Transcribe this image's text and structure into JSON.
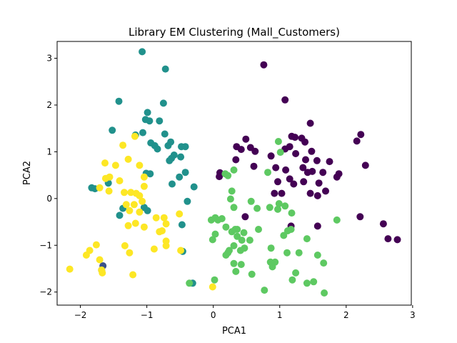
{
  "chart_data": {
    "type": "scatter",
    "title": "Library EM Clustering (Mall_Customers)",
    "xlabel": "PCA1",
    "ylabel": "PCA2",
    "xlim": [
      -2.35,
      2.98
    ],
    "ylim": [
      -2.28,
      3.36
    ],
    "xticks": [
      -2,
      -1,
      0,
      1,
      2,
      3
    ],
    "yticks": [
      -2,
      -1,
      0,
      1,
      2,
      3
    ],
    "grid": false,
    "colors": [
      "#440154",
      "#3b528b",
      "#21918c",
      "#5ec962",
      "#fde725"
    ],
    "series": [
      {
        "color": "#440154",
        "points": [
          [
            0.76,
            2.86
          ],
          [
            1.08,
            2.11
          ],
          [
            1.46,
            1.61
          ],
          [
            1.18,
            1.33
          ],
          [
            1.23,
            1.31
          ],
          [
            1.33,
            1.29
          ],
          [
            0.49,
            1.27
          ],
          [
            2.22,
            1.37
          ],
          [
            2.29,
            0.71
          ],
          [
            2.16,
            1.23
          ],
          [
            0.56,
            1.09
          ],
          [
            0.35,
            1.11
          ],
          [
            0.42,
            1.05
          ],
          [
            0.63,
            1.01
          ],
          [
            1.08,
            1.06
          ],
          [
            1.15,
            1.11
          ],
          [
            1.38,
            1.21
          ],
          [
            1.48,
            1.01
          ],
          [
            0.34,
            0.83
          ],
          [
            0.87,
            0.91
          ],
          [
            1.24,
            0.96
          ],
          [
            1.39,
            0.83
          ],
          [
            1.56,
            0.81
          ],
          [
            1.65,
            0.56
          ],
          [
            1.75,
            0.79
          ],
          [
            0.61,
            0.69
          ],
          [
            0.94,
            0.66
          ],
          [
            1.09,
            0.61
          ],
          [
            1.35,
            0.66
          ],
          [
            1.42,
            0.56
          ],
          [
            1.49,
            0.58
          ],
          [
            1.89,
            0.53
          ],
          [
            1.86,
            0.46
          ],
          [
            0.97,
            0.36
          ],
          [
            1.15,
            0.42
          ],
          [
            1.21,
            0.31
          ],
          [
            1.36,
            0.36
          ],
          [
            1.59,
            0.33
          ],
          [
            1.69,
            0.16
          ],
          [
            0.92,
            0.11
          ],
          [
            1.03,
            0.11
          ],
          [
            1.46,
            0.11
          ],
          [
            1.57,
            0.06
          ],
          [
            0.1,
            0.55
          ],
          [
            0.09,
            0.47
          ],
          [
            0.48,
            -0.39
          ],
          [
            1.17,
            -0.59
          ],
          [
            1.57,
            -0.59
          ],
          [
            2.21,
            -0.39
          ],
          [
            2.56,
            -0.54
          ],
          [
            2.63,
            -0.86
          ],
          [
            2.77,
            -0.88
          ]
        ]
      },
      {
        "color": "#3b528b",
        "points": [
          [
            -1.66,
            -1.44
          ],
          [
            -1.68,
            -1.53
          ]
        ]
      },
      {
        "color": "#21918c",
        "points": [
          [
            -1.07,
            3.14
          ],
          [
            -0.72,
            2.77
          ],
          [
            -1.42,
            2.08
          ],
          [
            -0.75,
            2.04
          ],
          [
            -0.99,
            1.84
          ],
          [
            -1.02,
            1.69
          ],
          [
            -0.96,
            1.66
          ],
          [
            -0.81,
            1.66
          ],
          [
            -1.52,
            1.46
          ],
          [
            -1.17,
            1.36
          ],
          [
            -1.06,
            1.41
          ],
          [
            -0.73,
            1.38
          ],
          [
            -0.64,
            1.21
          ],
          [
            -0.68,
            1.13
          ],
          [
            -0.94,
            1.19
          ],
          [
            -0.88,
            1.13
          ],
          [
            -0.84,
            1.06
          ],
          [
            -0.48,
            1.11
          ],
          [
            -0.42,
            1.11
          ],
          [
            -0.59,
            0.93
          ],
          [
            -0.63,
            0.86
          ],
          [
            -0.66,
            0.81
          ],
          [
            -0.49,
            0.89
          ],
          [
            -0.42,
            0.56
          ],
          [
            -0.51,
            0.46
          ],
          [
            -0.62,
            0.31
          ],
          [
            -1.01,
            0.54
          ],
          [
            -0.95,
            0.53
          ],
          [
            -1.83,
            0.23
          ],
          [
            -1.78,
            0.21
          ],
          [
            -1.58,
            0.33
          ],
          [
            -1.36,
            -0.21
          ],
          [
            -1.41,
            -0.36
          ],
          [
            -1.04,
            -0.19
          ],
          [
            -0.99,
            -0.26
          ],
          [
            -0.29,
            0.25
          ],
          [
            -0.39,
            -0.06
          ],
          [
            -0.47,
            -0.56
          ],
          [
            -0.46,
            -1.13
          ],
          [
            -0.31,
            -1.81
          ]
        ]
      },
      {
        "color": "#5ec962",
        "points": [
          [
            0.98,
            1.22
          ],
          [
            1.01,
            0.99
          ],
          [
            0.82,
            0.56
          ],
          [
            0.18,
            0.53
          ],
          [
            0.31,
            0.61
          ],
          [
            0.22,
            0.49
          ],
          [
            0.28,
            0.16
          ],
          [
            0.26,
            -0.01
          ],
          [
            0.31,
            -0.19
          ],
          [
            0.57,
            -0.06
          ],
          [
            0.66,
            -0.21
          ],
          [
            0.85,
            -0.19
          ],
          [
            0.97,
            -0.23
          ],
          [
            0.99,
            -0.11
          ],
          [
            1.08,
            -0.16
          ],
          [
            1.18,
            -0.31
          ],
          [
            1.06,
            -0.79
          ],
          [
            1.12,
            -0.69
          ],
          [
            1.17,
            -0.66
          ],
          [
            0.03,
            -0.41
          ],
          [
            0.07,
            -0.46
          ],
          [
            0.13,
            -0.43
          ],
          [
            -0.03,
            -0.46
          ],
          [
            0.19,
            -0.61
          ],
          [
            0.28,
            -0.71
          ],
          [
            0.33,
            -0.66
          ],
          [
            0.36,
            -0.66
          ],
          [
            0.46,
            -0.73
          ],
          [
            0.68,
            -0.66
          ],
          [
            0.36,
            -0.81
          ],
          [
            0.43,
            -0.89
          ],
          [
            0.55,
            -0.89
          ],
          [
            0.03,
            -0.76
          ],
          [
            -0.01,
            -0.88
          ],
          [
            0.31,
            -1.01
          ],
          [
            0.47,
            -1.06
          ],
          [
            0.22,
            -1.16
          ],
          [
            0.24,
            -1.11
          ],
          [
            0.19,
            -1.21
          ],
          [
            0.41,
            -1.11
          ],
          [
            0.87,
            -1.06
          ],
          [
            1.11,
            -1.16
          ],
          [
            1.29,
            -1.16
          ],
          [
            0.86,
            -1.36
          ],
          [
            0.31,
            -1.39
          ],
          [
            0.42,
            -1.41
          ],
          [
            0.93,
            -1.36
          ],
          [
            1.86,
            -0.46
          ],
          [
            1.41,
            -0.86
          ],
          [
            1.57,
            -1.21
          ],
          [
            1.66,
            -1.38
          ],
          [
            1.24,
            -1.59
          ],
          [
            0.34,
            -1.56
          ],
          [
            0.58,
            -1.62
          ],
          [
            0.89,
            -1.46
          ],
          [
            1.19,
            -1.74
          ],
          [
            1.51,
            -1.78
          ],
          [
            1.41,
            -1.81
          ],
          [
            1.67,
            -2.02
          ],
          [
            0.77,
            -1.96
          ],
          [
            0.02,
            -1.74
          ],
          [
            -0.36,
            -1.81
          ]
        ]
      },
      {
        "color": "#fde725",
        "points": [
          [
            -1.18,
            1.33
          ],
          [
            -1.63,
            0.76
          ],
          [
            -1.47,
            0.71
          ],
          [
            -1.36,
            1.14
          ],
          [
            -1.28,
            0.84
          ],
          [
            -1.62,
            0.43
          ],
          [
            -1.56,
            0.46
          ],
          [
            -1.41,
            0.38
          ],
          [
            -1.71,
            0.23
          ],
          [
            -1.11,
            0.71
          ],
          [
            -1.04,
            0.46
          ],
          [
            -1.04,
            0.26
          ],
          [
            -1.57,
            0.16
          ],
          [
            -1.34,
            0.13
          ],
          [
            -1.24,
            0.13
          ],
          [
            -1.16,
            0.11
          ],
          [
            -1.11,
            0.06
          ],
          [
            -1.07,
            -0.06
          ],
          [
            -1.31,
            -0.13
          ],
          [
            -1.19,
            -0.13
          ],
          [
            -1.26,
            -0.26
          ],
          [
            -1.11,
            -0.29
          ],
          [
            -1.28,
            -0.58
          ],
          [
            -1.17,
            -0.53
          ],
          [
            -1.04,
            -0.61
          ],
          [
            -0.86,
            -0.41
          ],
          [
            -0.74,
            -0.41
          ],
          [
            -0.71,
            -0.54
          ],
          [
            -0.77,
            -0.69
          ],
          [
            -0.81,
            -0.71
          ],
          [
            -0.51,
            -0.33
          ],
          [
            -0.71,
            -0.91
          ],
          [
            -0.71,
            -1.01
          ],
          [
            -0.89,
            -1.08
          ],
          [
            -0.49,
            -1.11
          ],
          [
            -1.33,
            -1.01
          ],
          [
            -1.26,
            -1.16
          ],
          [
            -1.21,
            -1.63
          ],
          [
            -1.76,
            -0.99
          ],
          [
            -1.86,
            -1.11
          ],
          [
            -1.91,
            -1.21
          ],
          [
            -1.71,
            -1.31
          ],
          [
            -1.68,
            -1.53
          ],
          [
            -1.67,
            -1.59
          ],
          [
            -2.16,
            -1.51
          ],
          [
            -0.01,
            -1.89
          ]
        ]
      }
    ]
  }
}
